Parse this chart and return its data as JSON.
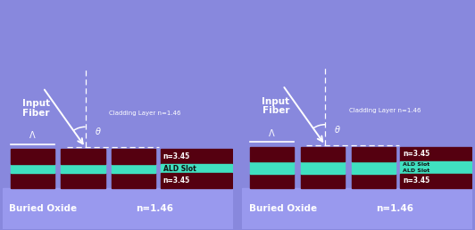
{
  "bg_color": "#8888dd",
  "buried_oxide_color": "#9999ee",
  "si_color": "#550010",
  "slot_color": "#40e0c0",
  "text_color": "white",
  "fig_width": 5.32,
  "fig_height": 2.58,
  "dpi": 100,
  "panel1": {
    "title_line1": "Input",
    "title_line2": "Fiber",
    "cladding_text": "Cladding Layer n=1.46",
    "lambda_label": "Λ",
    "label_n_top": "n=3.45",
    "label_slot": "ALD Slot",
    "label_n_bot": "n=3.45",
    "buried_oxide": "Buried Oxide",
    "n_buried": "n=1.46",
    "num_slots": 1
  },
  "panel2": {
    "title_line1": "Input",
    "title_line2": "Fiber",
    "cladding_text": "Cladding Layer n=1.46",
    "lambda_label": "Λ",
    "label_n_top": "n=3.45",
    "label_slot1": "ALD Slot",
    "label_slot2": "ALD Slot",
    "label_n_bot": "n=3.45",
    "buried_oxide": "Buried Oxide",
    "n_buried": "n=1.46",
    "num_slots": 2
  }
}
